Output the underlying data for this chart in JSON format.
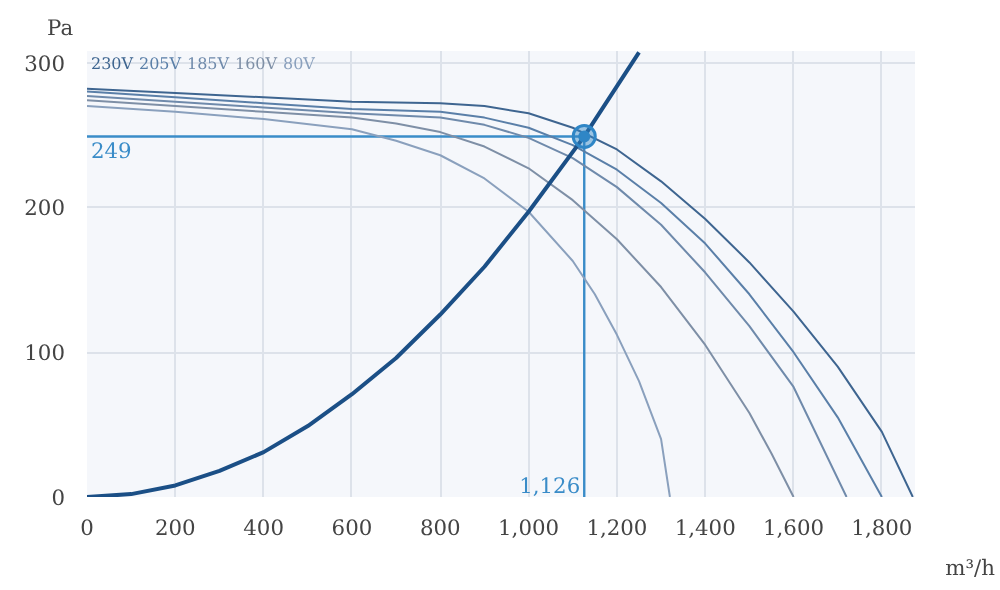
{
  "chart_data": {
    "type": "line",
    "xlabel": "m³/h",
    "ylabel": "Pa",
    "xlim": [
      0,
      1875
    ],
    "ylim": [
      0,
      308
    ],
    "xticks": [
      0,
      200,
      400,
      600,
      800,
      {
        "value": 1000,
        "label": "1,000"
      },
      {
        "value": 1200,
        "label": "1,200"
      },
      {
        "value": 1400,
        "label": "1,400"
      },
      {
        "value": 1600,
        "label": "1,600"
      },
      {
        "value": 1800,
        "label": "1,800"
      }
    ],
    "yticks": [
      0,
      100,
      200,
      300
    ],
    "grid": true,
    "legend": false,
    "marker": "none",
    "line_style": "solid",
    "series": [
      {
        "name": "230V",
        "color": "#3e6590",
        "x": [
          0,
          200,
          400,
          600,
          800,
          900,
          1000,
          1100,
          1200,
          1300,
          1400,
          1500,
          1600,
          1700,
          1800,
          1870
        ],
        "values": [
          282,
          279,
          276,
          273,
          272,
          270,
          265,
          255,
          240,
          218,
          192,
          162,
          128,
          90,
          45,
          0
        ]
      },
      {
        "name": "205V",
        "color": "#5a7fa8",
        "x": [
          0,
          200,
          400,
          600,
          800,
          900,
          1000,
          1100,
          1200,
          1300,
          1400,
          1500,
          1600,
          1700,
          1800
        ],
        "values": [
          280,
          276,
          272,
          268,
          266,
          262,
          255,
          243,
          226,
          203,
          175,
          140,
          100,
          55,
          0
        ]
      },
      {
        "name": "185V",
        "color": "#6f8aab",
        "x": [
          0,
          200,
          400,
          600,
          800,
          900,
          1000,
          1100,
          1200,
          1300,
          1400,
          1500,
          1600,
          1720
        ],
        "values": [
          277,
          273,
          269,
          265,
          262,
          257,
          248,
          234,
          214,
          188,
          155,
          118,
          76,
          0
        ]
      },
      {
        "name": "160V",
        "color": "#7e8fa6",
        "x": [
          0,
          200,
          400,
          600,
          700,
          800,
          900,
          1000,
          1100,
          1200,
          1300,
          1400,
          1500,
          1550,
          1600
        ],
        "values": [
          274,
          270,
          266,
          262,
          258,
          252,
          242,
          227,
          205,
          178,
          145,
          105,
          58,
          30,
          0
        ]
      },
      {
        "name": "80V",
        "color": "#8aa0bd",
        "x": [
          0,
          200,
          400,
          600,
          700,
          800,
          900,
          1000,
          1100,
          1150,
          1200,
          1250,
          1300,
          1320
        ],
        "values": [
          270,
          266,
          261,
          254,
          246,
          236,
          220,
          197,
          163,
          140,
          112,
          80,
          40,
          0
        ]
      },
      {
        "color": "#1b4f86",
        "x": [
          0,
          100,
          200,
          300,
          400,
          500,
          600,
          700,
          800,
          900,
          1000,
          1126,
          1250
        ],
        "values": [
          0,
          2,
          8,
          18,
          31,
          49,
          71,
          96,
          126,
          159,
          197,
          249,
          307
        ]
      },
      {
        "type": "scatter",
        "marker": "circle",
        "color": "#2f86c6",
        "x": [
          1126
        ],
        "values": [
          249
        ]
      }
    ],
    "ref_lines": [
      {
        "axis": "y",
        "value": 249,
        "label": "249",
        "color": "#3a8cc8"
      },
      {
        "axis": "x",
        "value": 1126,
        "label": "1,126",
        "color": "#3a8cc8"
      }
    ]
  }
}
